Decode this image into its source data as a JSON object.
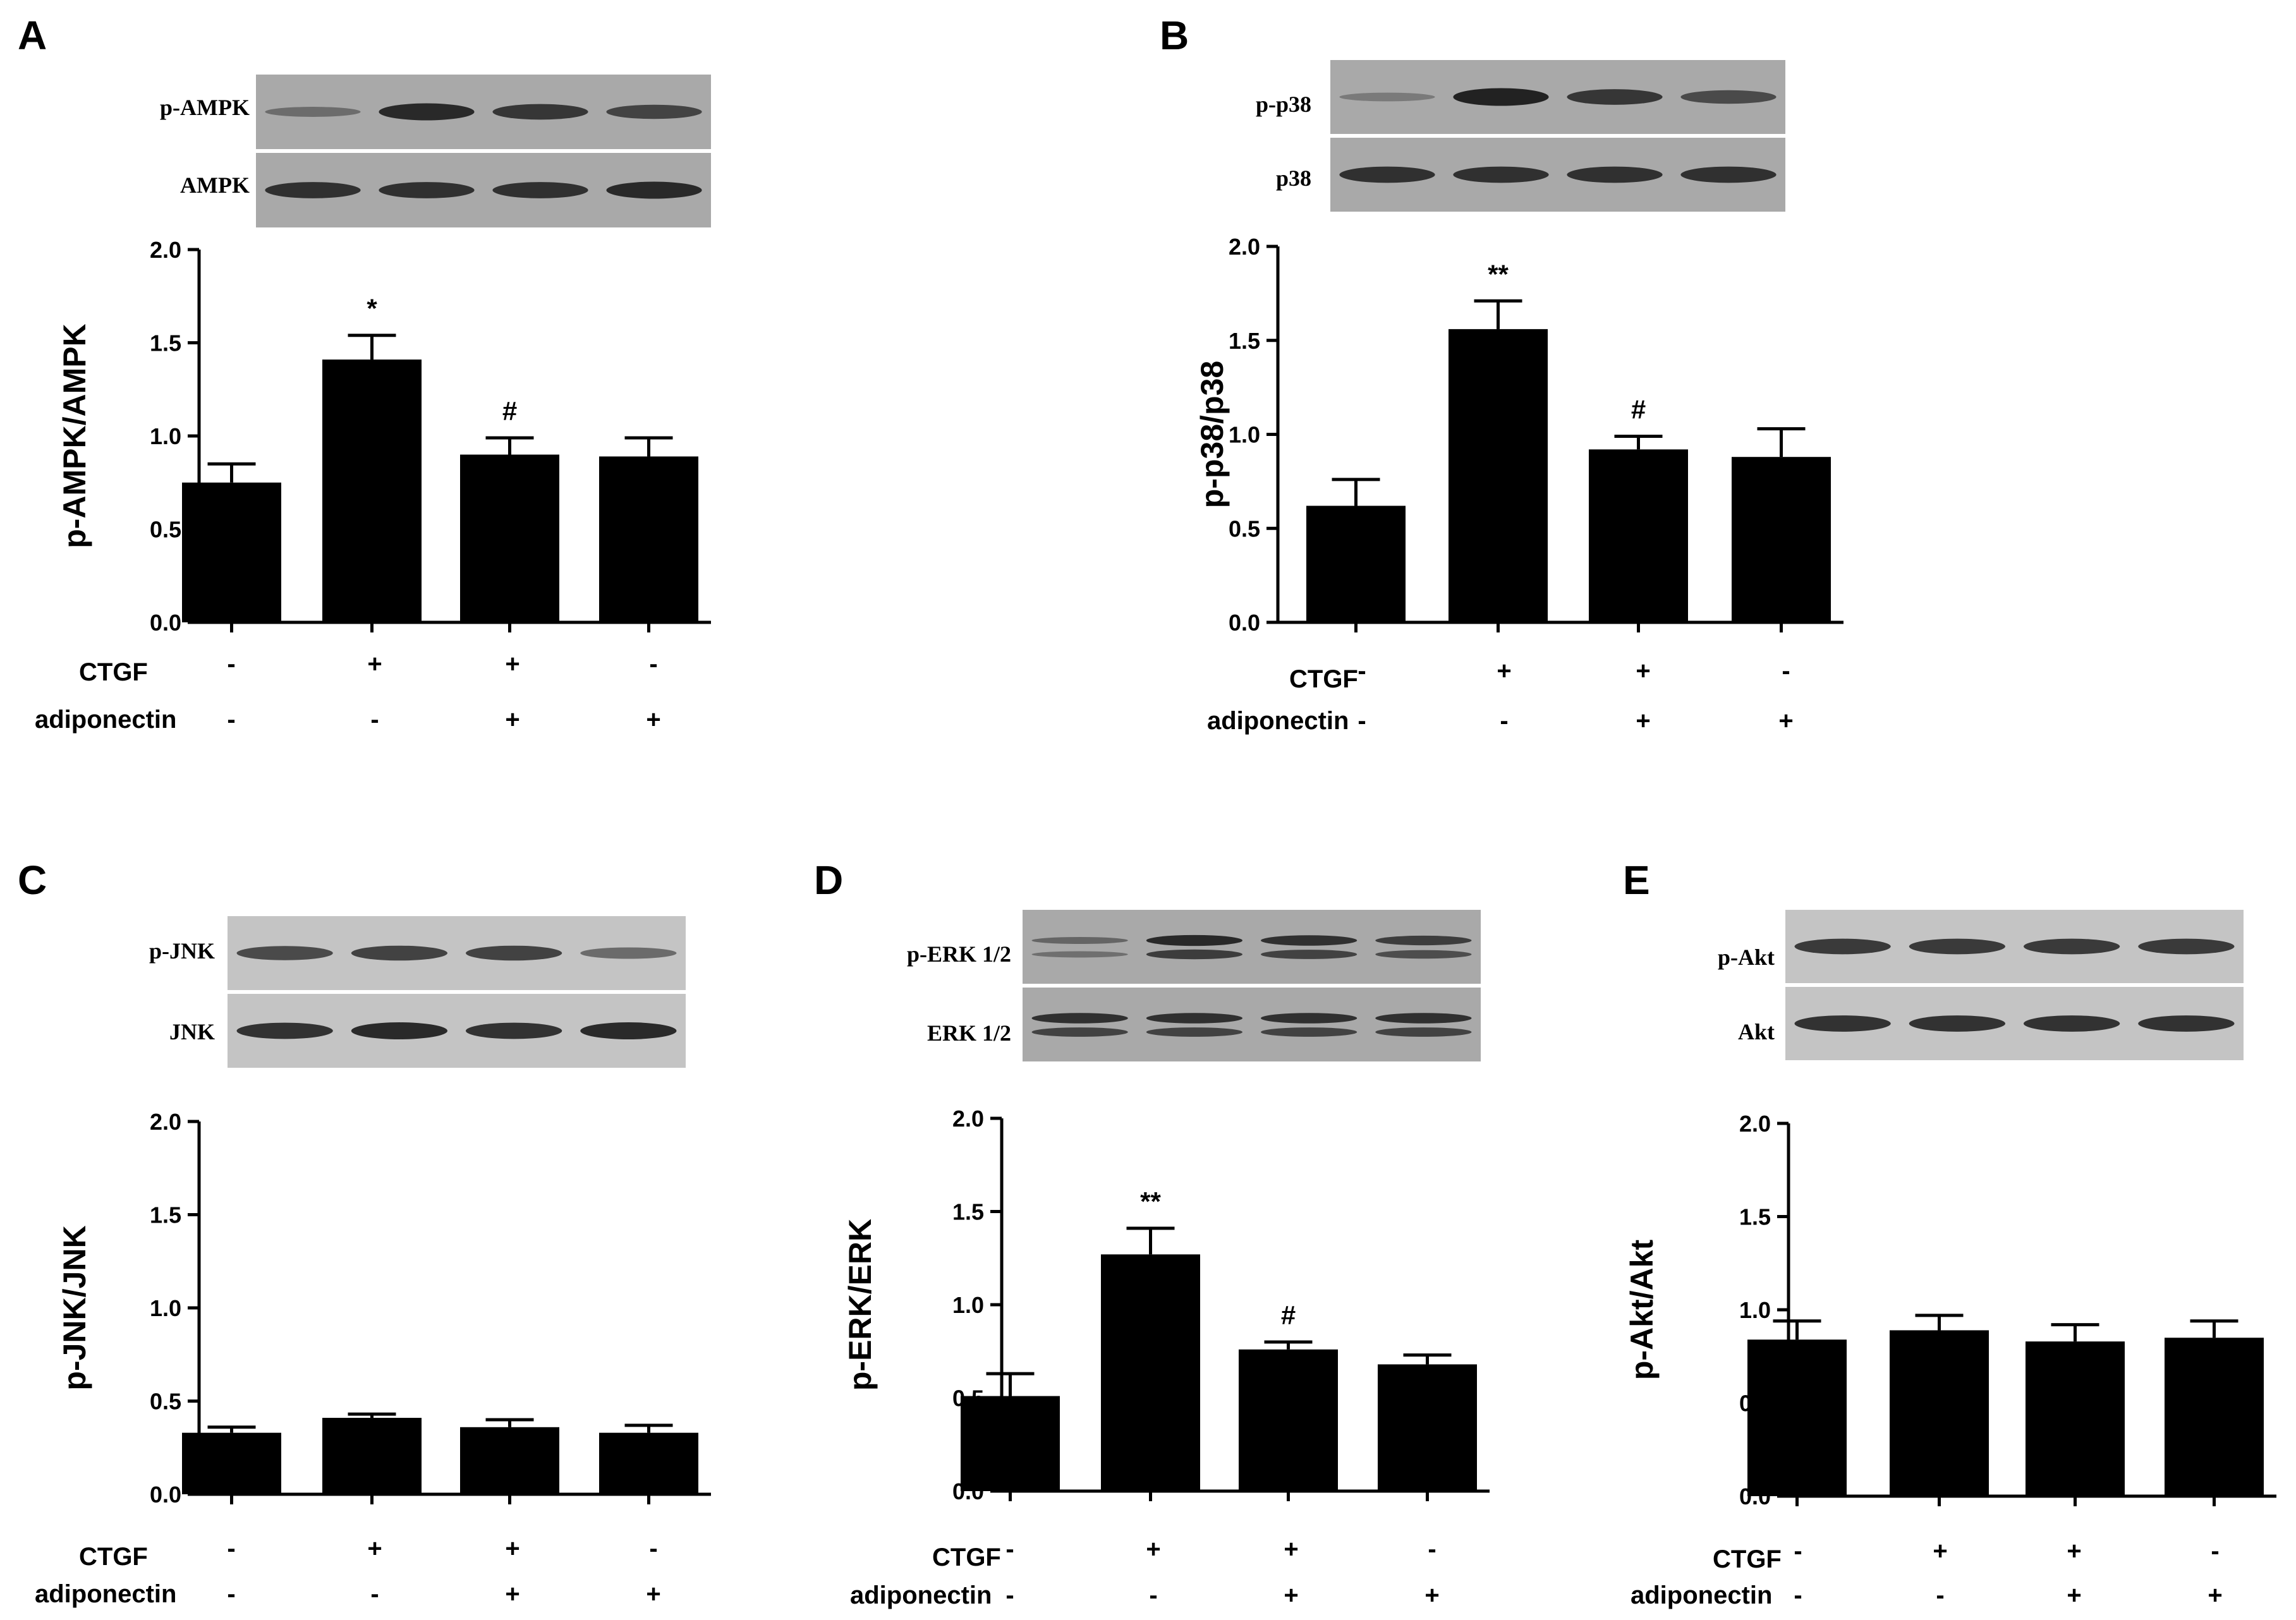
{
  "figure": {
    "conditions": {
      "ctgf_label": "CTGF",
      "adiponectin_label": "adiponectin",
      "ctgf": [
        "-",
        "+",
        "+",
        "-"
      ],
      "adiponectin": [
        "-",
        "-",
        "+",
        "+"
      ]
    },
    "colors": {
      "bar": "#000000",
      "blot_background": "#a9a9a9",
      "blot_background_light": "#c4c4c4",
      "band": "#222222"
    }
  },
  "chart_data": [
    {
      "panel": "A",
      "type": "bar",
      "categories": [
        "1",
        "2",
        "3",
        "4"
      ],
      "values": [
        0.75,
        1.41,
        0.9,
        0.89
      ],
      "errors": [
        0.1,
        0.13,
        0.09,
        0.1
      ],
      "annotations": [
        "",
        "*",
        "#",
        ""
      ],
      "ylabel": "p-AMPK/AMPK",
      "ylim": [
        0,
        2.0
      ],
      "yticks": [
        "0.0",
        "0.5",
        "1.0",
        "1.5",
        "2.0"
      ],
      "blot": {
        "rows": [
          "p-AMPK",
          "AMPK"
        ],
        "style": "dark",
        "band_intensity": [
          [
            0.45,
            0.95,
            0.85,
            0.75
          ],
          [
            0.9,
            0.9,
            0.9,
            0.95
          ]
        ]
      }
    },
    {
      "panel": "B",
      "type": "bar",
      "categories": [
        "1",
        "2",
        "3",
        "4"
      ],
      "values": [
        0.62,
        1.56,
        0.92,
        0.88
      ],
      "errors": [
        0.14,
        0.15,
        0.07,
        0.15
      ],
      "annotations": [
        "",
        "**",
        "#",
        ""
      ],
      "ylabel": "p-p38/p38",
      "ylim": [
        0,
        2.0
      ],
      "yticks": [
        "0.0",
        "0.5",
        "1.0",
        "1.5",
        "2.0"
      ],
      "blot": {
        "rows": [
          "p-p38",
          "p38"
        ],
        "style": "dark",
        "band_intensity": [
          [
            0.35,
            1.0,
            0.85,
            0.7
          ],
          [
            0.9,
            0.9,
            0.9,
            0.9
          ]
        ]
      }
    },
    {
      "panel": "C",
      "type": "bar",
      "categories": [
        "1",
        "2",
        "3",
        "4"
      ],
      "values": [
        0.33,
        0.41,
        0.36,
        0.33
      ],
      "errors": [
        0.03,
        0.02,
        0.04,
        0.04
      ],
      "annotations": [
        "",
        "",
        "",
        ""
      ],
      "ylabel": "p-JNK/JNK",
      "ylim": [
        0,
        2.0
      ],
      "yticks": [
        "0.0",
        "0.5",
        "1.0",
        "1.5",
        "2.0"
      ],
      "blot": {
        "rows": [
          "p-JNK",
          "JNK"
        ],
        "style": "light",
        "band_intensity": [
          [
            0.75,
            0.8,
            0.8,
            0.55
          ],
          [
            0.9,
            0.95,
            0.9,
            0.95
          ]
        ]
      }
    },
    {
      "panel": "D",
      "type": "bar",
      "categories": [
        "1",
        "2",
        "3",
        "4"
      ],
      "values": [
        0.51,
        1.27,
        0.76,
        0.68
      ],
      "errors": [
        0.12,
        0.14,
        0.04,
        0.05
      ],
      "annotations": [
        "",
        "**",
        "#",
        ""
      ],
      "ylabel": "p-ERK/ERK",
      "ylim": [
        0,
        2.0
      ],
      "yticks": [
        "0.0",
        "0.5",
        "1.0",
        "1.5",
        "2.0"
      ],
      "blot": {
        "rows": [
          "p-ERK 1/2",
          "ERK 1/2"
        ],
        "style": "dark",
        "double_band": true,
        "band_intensity": [
          [
            0.5,
            0.95,
            0.9,
            0.8
          ],
          [
            0.9,
            0.9,
            0.9,
            0.9
          ]
        ]
      }
    },
    {
      "panel": "E",
      "type": "bar",
      "categories": [
        "1",
        "2",
        "3",
        "4"
      ],
      "values": [
        0.84,
        0.89,
        0.83,
        0.85
      ],
      "errors": [
        0.1,
        0.08,
        0.09,
        0.09
      ],
      "annotations": [
        "",
        "",
        "",
        ""
      ],
      "ylabel": "p-Akt/Akt",
      "ylim": [
        0,
        2.0
      ],
      "yticks": [
        "0.0",
        "0.5",
        "1.0",
        "1.5",
        "2.0"
      ],
      "blot": {
        "rows": [
          "p-Akt",
          "Akt"
        ],
        "style": "light",
        "band_intensity": [
          [
            0.85,
            0.85,
            0.85,
            0.85
          ],
          [
            0.9,
            0.9,
            0.9,
            0.9
          ]
        ]
      }
    }
  ]
}
